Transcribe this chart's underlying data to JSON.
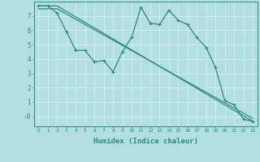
{
  "title": "",
  "xlabel": "Humidex (Indice chaleur)",
  "bg_color": "#b2dfdf",
  "grid_color": "#d4eeee",
  "line_color": "#2e8b7a",
  "xlim": [
    -0.5,
    23.5
  ],
  "ylim": [
    -0.7,
    8.0
  ],
  "xticks": [
    0,
    1,
    2,
    3,
    4,
    5,
    6,
    7,
    8,
    9,
    10,
    11,
    12,
    13,
    14,
    15,
    16,
    17,
    18,
    19,
    20,
    21,
    22,
    23
  ],
  "yticks": [
    0,
    1,
    2,
    3,
    4,
    5,
    6,
    7
  ],
  "ytick_labels": [
    "-0",
    "1",
    "2",
    "3",
    "4",
    "5",
    "6",
    "7"
  ],
  "line1_x": [
    0,
    1,
    2,
    3,
    4,
    5,
    6,
    7,
    8,
    9,
    10,
    11,
    12,
    13,
    14,
    15,
    16,
    17,
    18,
    19,
    20,
    21,
    22,
    23
  ],
  "line1_y": [
    7.7,
    7.7,
    7.2,
    5.9,
    4.6,
    4.6,
    3.8,
    3.9,
    3.1,
    4.5,
    5.5,
    7.6,
    6.5,
    6.4,
    7.4,
    6.7,
    6.4,
    5.5,
    4.8,
    3.4,
    1.1,
    0.8,
    -0.2,
    -0.35
  ],
  "line2_x": [
    0,
    2,
    23
  ],
  "line2_y": [
    7.7,
    7.7,
    -0.35
  ],
  "line3_x": [
    0,
    2,
    23
  ],
  "line3_y": [
    7.5,
    7.5,
    -0.15
  ]
}
